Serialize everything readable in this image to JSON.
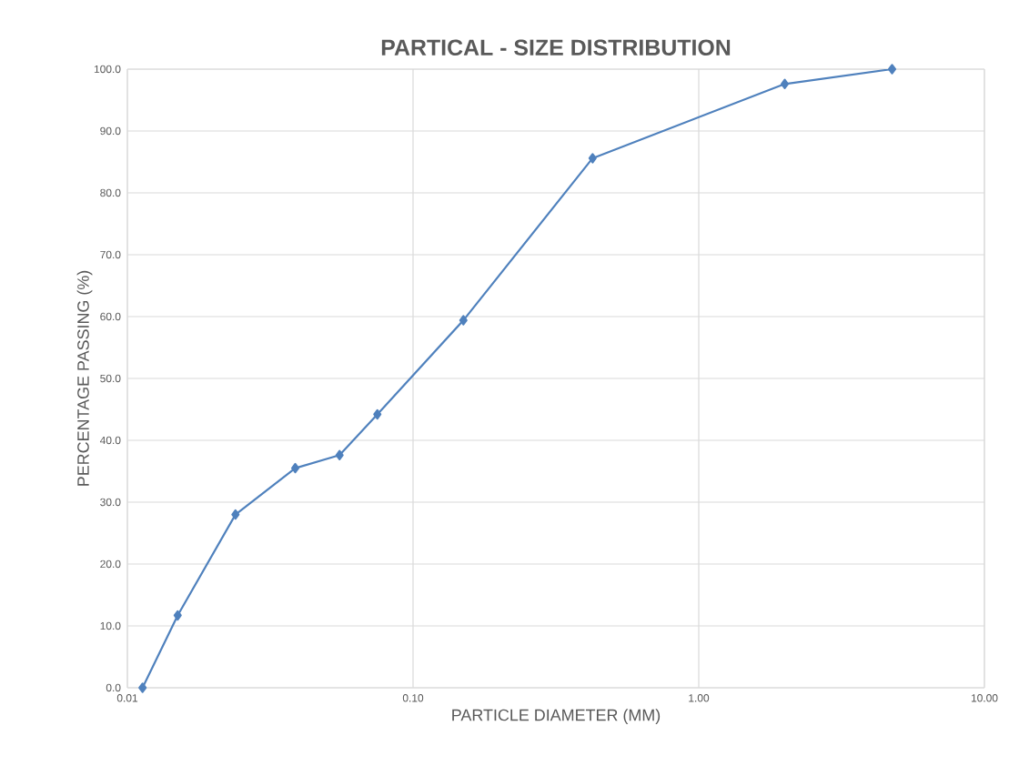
{
  "chart_data": {
    "type": "line",
    "title": "PARTICAL - SIZE DISTRIBUTION",
    "xlabel": "PARTICLE DIAMETER (MM)",
    "ylabel": "PERCENTAGE PASSING (%)",
    "log": "x",
    "grid": true,
    "marker": "diamond",
    "line_style": "solid",
    "xlim": [
      0.01,
      10
    ],
    "ylim": [
      0,
      100
    ],
    "xticks": [
      {
        "value": 0.01,
        "label": "0.01"
      },
      {
        "value": 0.1,
        "label": "0.10"
      },
      {
        "value": 1,
        "label": "1.00"
      },
      {
        "value": 10,
        "label": "10.00"
      }
    ],
    "yticks": [
      {
        "value": 0,
        "label": "0.0"
      },
      {
        "value": 10,
        "label": "10.0"
      },
      {
        "value": 20,
        "label": "20.0"
      },
      {
        "value": 30,
        "label": "30.0"
      },
      {
        "value": 40,
        "label": "40.0"
      },
      {
        "value": 50,
        "label": "50.0"
      },
      {
        "value": 60,
        "label": "60.0"
      },
      {
        "value": 70,
        "label": "70.0"
      },
      {
        "value": 80,
        "label": "80.0"
      },
      {
        "value": 90,
        "label": "90.0"
      },
      {
        "value": 100,
        "label": "100.0"
      }
    ],
    "x": [
      0.0113,
      0.015,
      0.0239,
      0.0387,
      0.0553,
      0.075,
      0.15,
      0.425,
      2.0,
      4.75
    ],
    "series": [
      {
        "color": "#4f81bd",
        "values": [
          0,
          11.7,
          28.0,
          35.5,
          37.6,
          44.2,
          59.4,
          85.6,
          97.6,
          100
        ]
      }
    ]
  }
}
